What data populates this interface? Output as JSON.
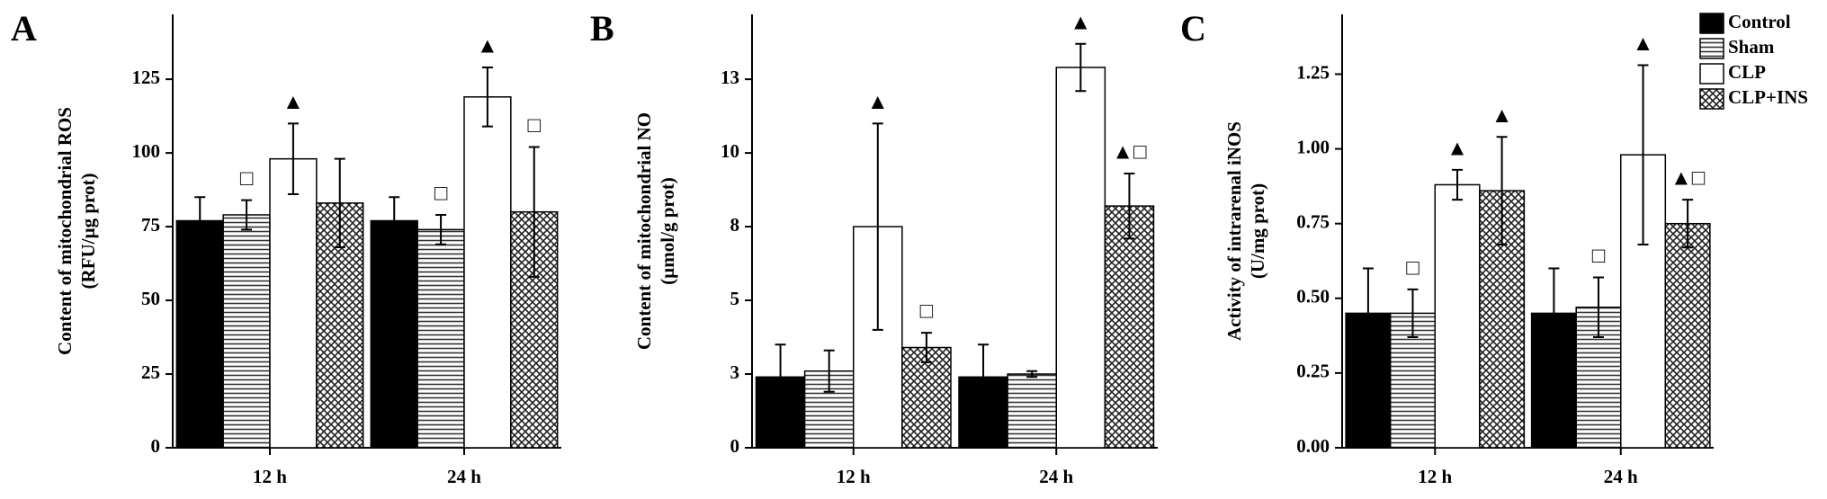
{
  "chart_data": [
    {
      "type": "bar",
      "label": "A",
      "ylabel": [
        "Content of mitochondrial ROS",
        "(RFU/µg prot)"
      ],
      "categories": [
        "12 h",
        "24 h"
      ],
      "ylim": [
        0,
        147
      ],
      "yticks": [
        0,
        25,
        50,
        75,
        100,
        125
      ],
      "series": [
        {
          "name": "Control",
          "color": "#000000",
          "pattern": "solid",
          "values": [
            77,
            77
          ],
          "errors": [
            8,
            8
          ],
          "annotations": [
            null,
            null
          ]
        },
        {
          "name": "Sham",
          "color": "#ffffff",
          "pattern": "horizontal",
          "values": [
            79,
            74
          ],
          "errors": [
            5,
            5
          ],
          "annotations": [
            "□",
            "□"
          ]
        },
        {
          "name": "CLP",
          "color": "#ffffff",
          "pattern": "solid",
          "values": [
            98,
            119
          ],
          "errors": [
            12,
            10
          ],
          "annotations": [
            "▲",
            "▲"
          ]
        },
        {
          "name": "CLP+INS",
          "color": "#ffffff",
          "pattern": "crosshatch",
          "values": [
            83,
            80
          ],
          "errors": [
            15,
            22
          ],
          "annotations": [
            null,
            "□"
          ]
        }
      ]
    },
    {
      "type": "bar",
      "label": "B",
      "ylabel": [
        "Content of mitochondrial NO",
        "(µmol/g prot)"
      ],
      "categories": [
        "12 h",
        "24 h"
      ],
      "ylim": [
        0,
        14.7
      ],
      "yticks": [
        0,
        {
          "value": 2.5,
          "label": "3"
        },
        5,
        {
          "value": 7.5,
          "label": "8"
        },
        10,
        {
          "value": 12.5,
          "label": "13"
        }
      ],
      "series": [
        {
          "name": "Control",
          "color": "#000000",
          "pattern": "solid",
          "values": [
            2.4,
            2.4
          ],
          "errors": [
            1.1,
            1.1
          ],
          "annotations": [
            null,
            null
          ]
        },
        {
          "name": "Sham",
          "color": "#ffffff",
          "pattern": "horizontal",
          "values": [
            2.6,
            2.5
          ],
          "errors": [
            0.7,
            0.1
          ],
          "annotations": [
            null,
            null
          ]
        },
        {
          "name": "CLP",
          "color": "#ffffff",
          "pattern": "solid",
          "values": [
            7.5,
            12.9
          ],
          "errors": [
            3.5,
            0.8
          ],
          "annotations": [
            "▲",
            "▲"
          ]
        },
        {
          "name": "CLP+INS",
          "color": "#ffffff",
          "pattern": "crosshatch",
          "values": [
            3.4,
            8.2
          ],
          "errors": [
            0.5,
            1.1
          ],
          "annotations": [
            "□",
            "▲□"
          ]
        }
      ]
    },
    {
      "type": "bar",
      "label": "C",
      "ylabel": [
        "Activity of intrarenal iNOS",
        "(U/mg prot)"
      ],
      "categories": [
        "12 h",
        "24 h"
      ],
      "ylim": [
        0,
        1.45
      ],
      "legend": "upper right",
      "yticks": [
        {
          "value": 0,
          "label": "0.00"
        },
        0.25,
        {
          "value": 0.5,
          "label": "0.50"
        },
        0.75,
        {
          "value": 1,
          "label": "1.00"
        },
        1.25
      ],
      "series": [
        {
          "name": "Control",
          "color": "#000000",
          "pattern": "solid",
          "values": [
            0.45,
            0.45
          ],
          "errors": [
            0.15,
            0.15
          ],
          "annotations": [
            null,
            null
          ]
        },
        {
          "name": "Sham",
          "color": "#ffffff",
          "pattern": "horizontal",
          "values": [
            0.45,
            0.47
          ],
          "errors": [
            0.08,
            0.1
          ],
          "annotations": [
            "□",
            "□"
          ]
        },
        {
          "name": "CLP",
          "color": "#ffffff",
          "pattern": "solid",
          "values": [
            0.88,
            0.98
          ],
          "errors": [
            0.05,
            0.3
          ],
          "annotations": [
            "▲",
            "▲"
          ]
        },
        {
          "name": "CLP+INS",
          "color": "#ffffff",
          "pattern": "crosshatch",
          "values": [
            0.86,
            0.75
          ],
          "errors": [
            0.18,
            0.08
          ],
          "annotations": [
            "▲",
            "▲□"
          ]
        }
      ]
    }
  ]
}
